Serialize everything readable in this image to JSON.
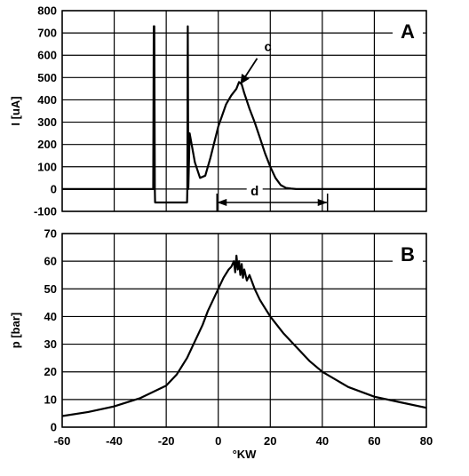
{
  "chart_data": [
    {
      "id": "A",
      "type": "line",
      "panel_label": "A",
      "xlabel": "",
      "ylabel": "I [uA]",
      "xlim": [
        -60,
        80
      ],
      "ylim": [
        -100,
        800
      ],
      "x_ticks": [
        -60,
        -40,
        -20,
        0,
        20,
        40,
        60,
        80
      ],
      "y_ticks": [
        -100,
        0,
        100,
        200,
        300,
        400,
        500,
        600,
        700,
        800
      ],
      "grid": true,
      "series": [
        {
          "x": [
            -60,
            -25,
            -24.8,
            -24.6,
            -24.4,
            -24.3,
            -23.5,
            -12,
            -11.9,
            -11.7,
            -11.5,
            -11,
            -9,
            -7,
            -5,
            -3,
            0,
            3,
            5,
            7,
            8,
            9,
            10,
            12,
            14,
            16,
            18,
            20,
            22,
            24,
            26,
            28,
            30,
            35,
            40,
            50,
            60,
            70,
            80
          ],
          "y": [
            0,
            0,
            730,
            730,
            0,
            -60,
            -60,
            -60,
            0,
            730,
            0,
            250,
            120,
            50,
            60,
            140,
            280,
            380,
            420,
            450,
            480,
            470,
            430,
            360,
            300,
            230,
            160,
            100,
            50,
            18,
            5,
            2,
            0,
            0,
            0,
            0,
            0,
            0,
            0
          ]
        }
      ],
      "annotations": [
        {
          "text": "c",
          "x": 17,
          "y": 610,
          "arrow_to": [
            8.5,
            470
          ]
        },
        {
          "text": "d",
          "x": 14,
          "y": 0,
          "span": [
            -0.5,
            42
          ],
          "span_y": -60
        }
      ]
    },
    {
      "id": "B",
      "type": "line",
      "panel_label": "B",
      "xlabel": "°KW",
      "ylabel": "p [bar]",
      "xlim": [
        -60,
        80
      ],
      "ylim": [
        0,
        70
      ],
      "x_ticks": [
        -60,
        -40,
        -20,
        0,
        20,
        40,
        60,
        80
      ],
      "y_ticks": [
        0,
        10,
        20,
        30,
        40,
        50,
        60,
        70
      ],
      "grid": true,
      "series": [
        {
          "x": [
            -60,
            -50,
            -40,
            -30,
            -20,
            -16,
            -12,
            -10,
            -8,
            -6,
            -4,
            -2,
            0,
            2,
            4,
            5,
            6,
            6.5,
            7,
            7.5,
            8,
            8.5,
            9,
            9.5,
            10,
            11,
            12,
            14,
            16,
            18,
            20,
            25,
            30,
            35,
            40,
            50,
            60,
            70,
            80
          ],
          "y": [
            4,
            5.5,
            7.5,
            10.5,
            15,
            19,
            25,
            29,
            33,
            37,
            42,
            46,
            50,
            54,
            57,
            58,
            60,
            56,
            62,
            57,
            60,
            55,
            59,
            54,
            57,
            53,
            55,
            50,
            46,
            43,
            40,
            34,
            29,
            24,
            20,
            14.5,
            11,
            9,
            7
          ]
        }
      ]
    }
  ]
}
